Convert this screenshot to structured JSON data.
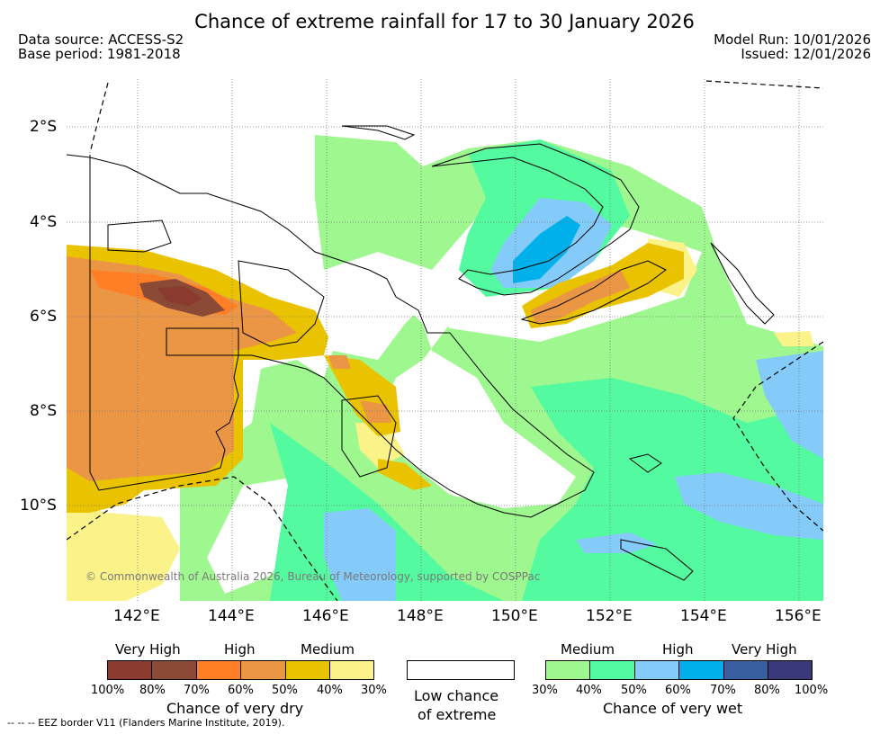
{
  "title": "Chance of extreme rainfall for 17 to 30 January 2026",
  "data_source": "Data source: ACCESS-S2",
  "base_period": "Base period: 1981-2018",
  "model_run": "Model Run: 10/01/2026",
  "issued": "Issued: 12/01/2026",
  "map": {
    "region": "Papua New Guinea",
    "lat_labels": [
      "2°S",
      "4°S",
      "6°S",
      "8°S",
      "10°S"
    ],
    "lon_labels": [
      "142°E",
      "144°E",
      "146°E",
      "148°E",
      "150°E",
      "152°E",
      "154°E",
      "156°E"
    ],
    "copyright": "© Commonwealth of Australia 2026, Bureau of Meteorology, supported by COSPPac",
    "colors": {
      "dry_100_80": "#8a3a2e",
      "dry_80_70": "#8b4a36",
      "dry_70_60": "#ff7f27",
      "dry_60_50": "#eb9645",
      "dry_50_40": "#e9c300",
      "dry_40_30": "#fbf38a",
      "wet_30_40": "#9ff78f",
      "wet_40_50": "#54fa9f",
      "wet_50_60": "#85cbfa",
      "wet_60_70": "#00b0ea",
      "wet_70_80": "#3a5fa0",
      "wet_80_100": "#3a3a7a"
    }
  },
  "legend": {
    "dry": {
      "tiers": [
        "Very High",
        "High",
        "Medium"
      ],
      "ticks": [
        "100%",
        "80%",
        "70%",
        "60%",
        "50%",
        "40%",
        "30%"
      ],
      "caption": "Chance of very dry"
    },
    "low": {
      "caption_line1": "Low chance",
      "caption_line2": "of extreme"
    },
    "wet": {
      "tiers": [
        "Medium",
        "High",
        "Very High"
      ],
      "ticks": [
        "30%",
        "40%",
        "50%",
        "60%",
        "70%",
        "80%",
        "100%"
      ],
      "caption": "Chance of very wet"
    }
  },
  "eez_note": "--  --  -- EEZ border V11 (Flanders Marine Institute, 2019)."
}
